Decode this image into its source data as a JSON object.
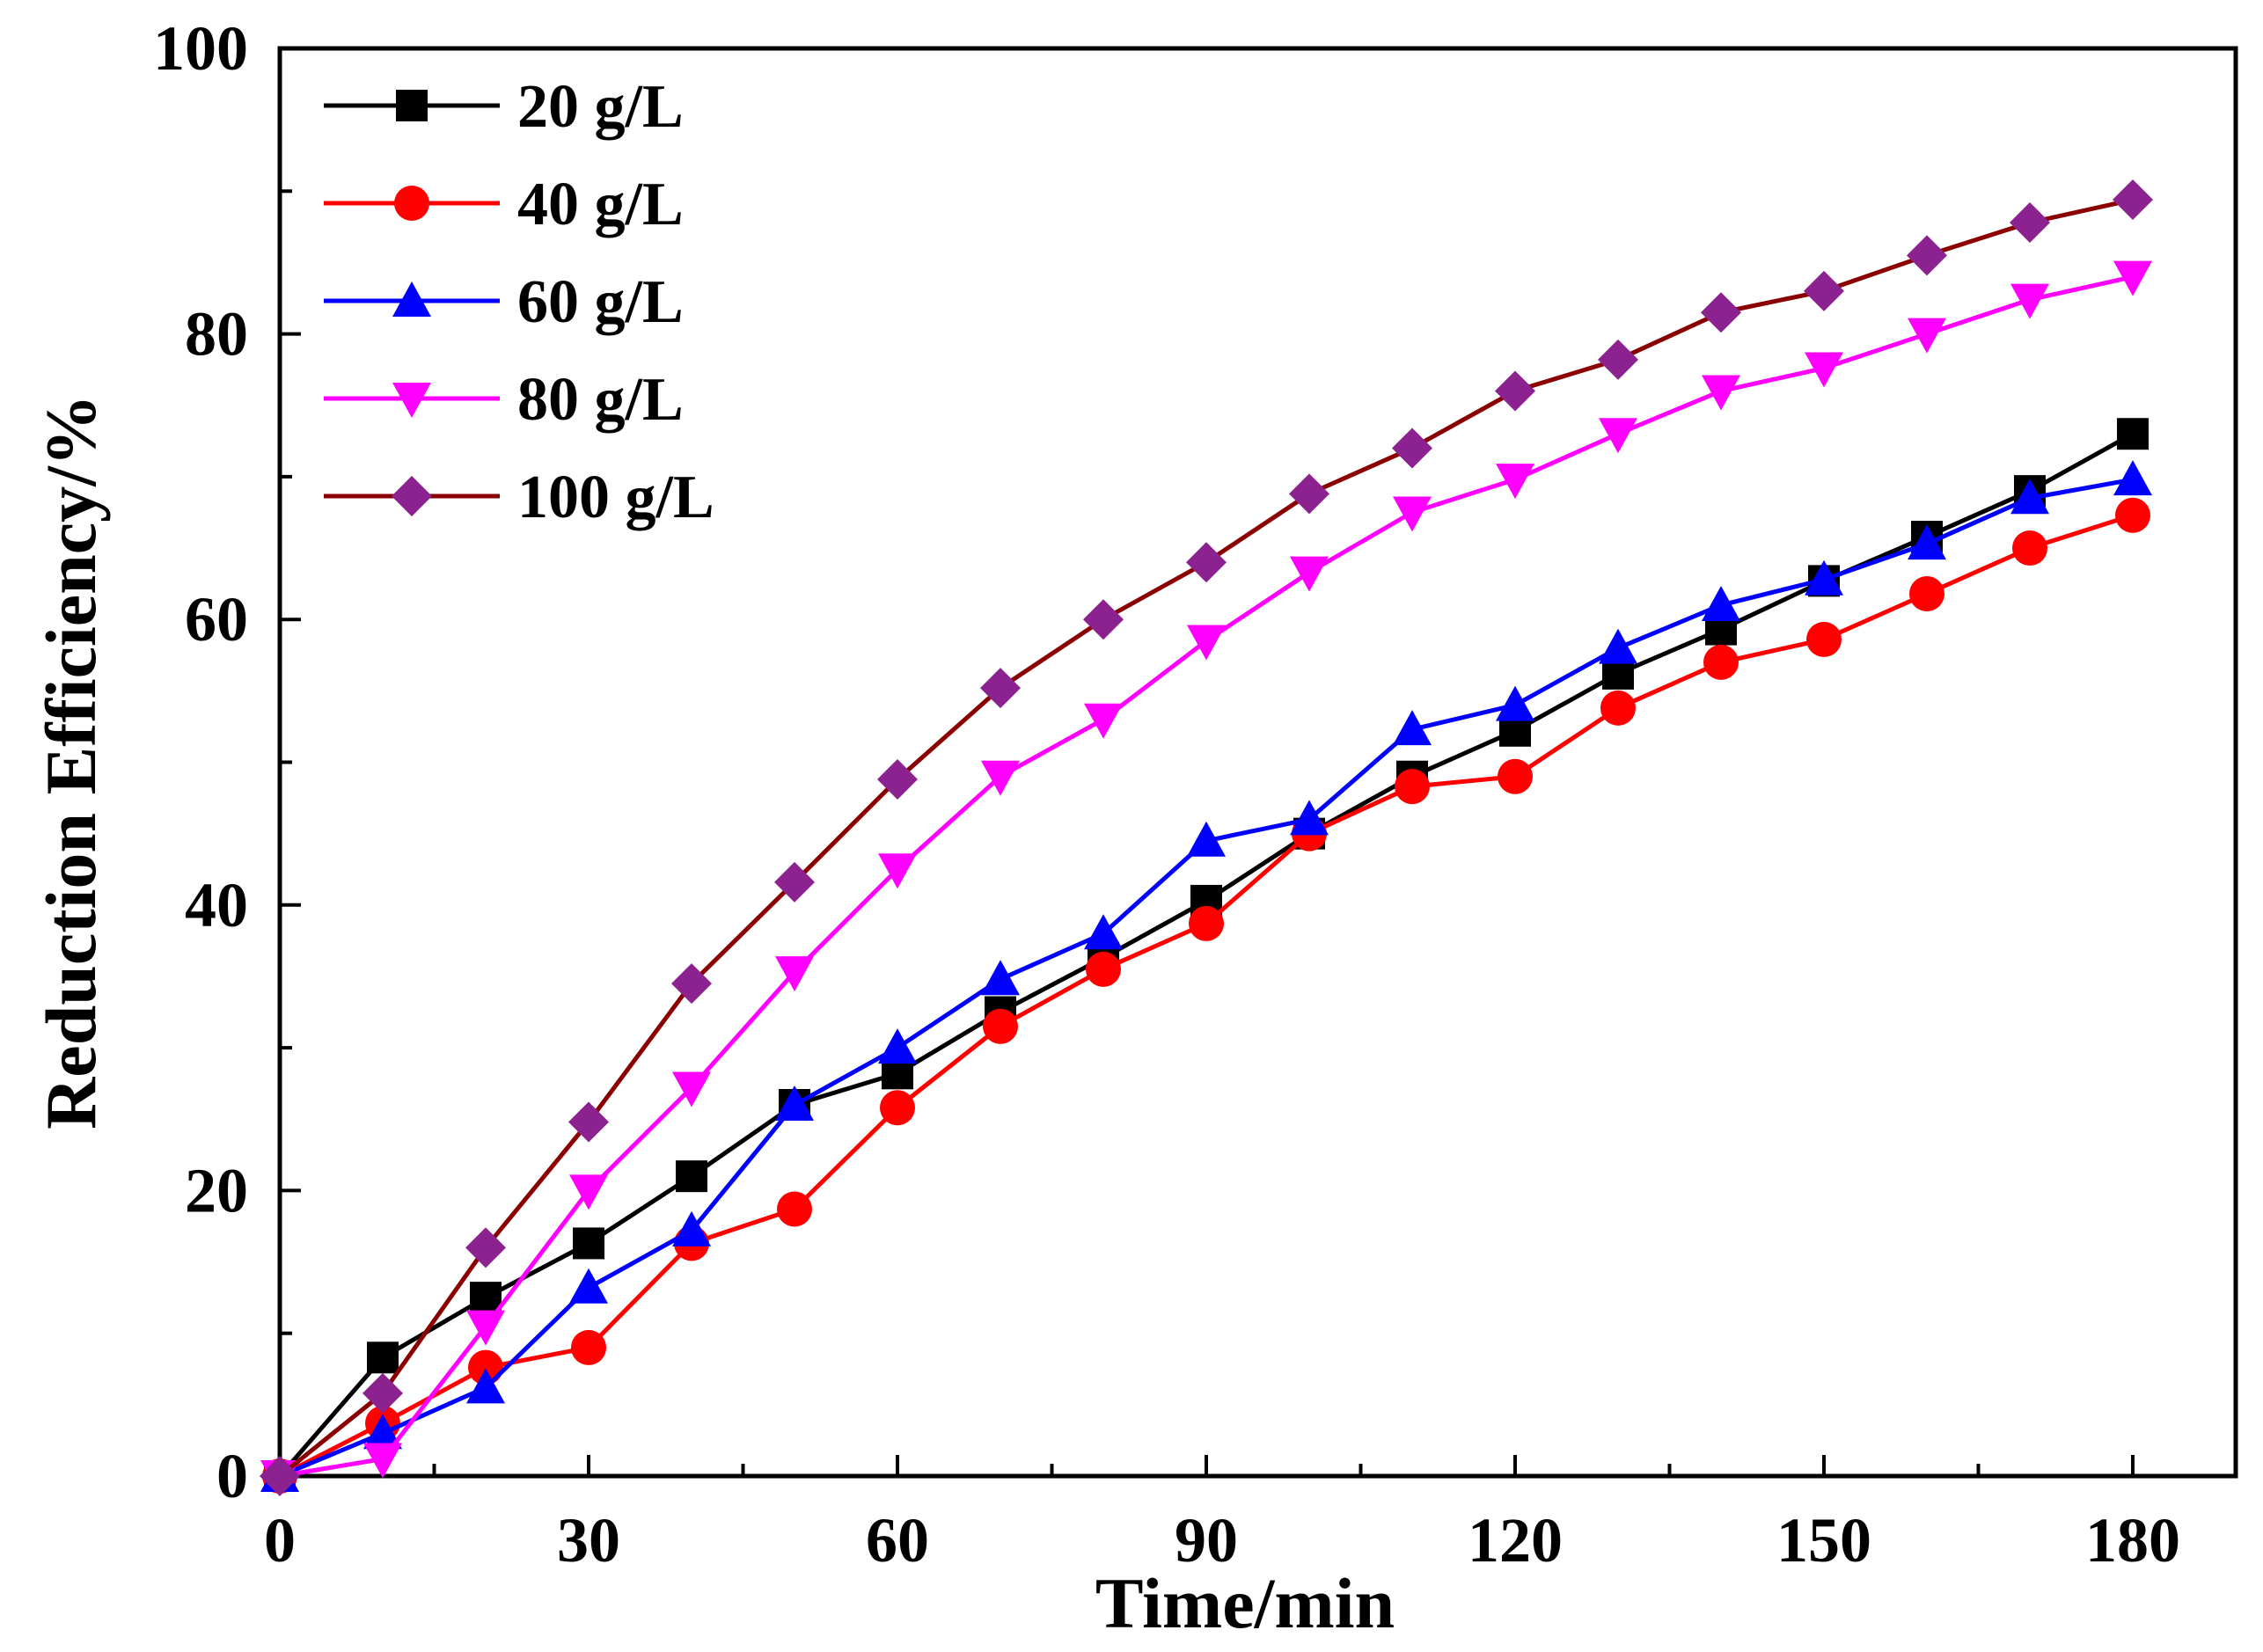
{
  "chart_data": {
    "type": "line",
    "xlabel": "Time/min",
    "ylabel": "Reduction Efficiency/%",
    "xlim": [
      0,
      190
    ],
    "ylim": [
      0,
      100
    ],
    "xticks": [
      0,
      30,
      60,
      90,
      120,
      150,
      180
    ],
    "xtick_labels": [
      "0",
      "30",
      "60",
      "90",
      "120",
      "150",
      "180"
    ],
    "yticks": [
      0,
      20,
      40,
      60,
      80,
      100
    ],
    "ytick_labels": [
      "0",
      "20",
      "40",
      "60",
      "80",
      "100"
    ],
    "legend_position": "top-left",
    "x": [
      0,
      10,
      20,
      30,
      40,
      50,
      60,
      70,
      80,
      90,
      100,
      110,
      120,
      130,
      140,
      150,
      160,
      170,
      180
    ],
    "series": [
      {
        "name": "20 g/L",
        "color": "#000000",
        "marker": "square",
        "values": [
          0,
          8.3,
          12.5,
          16.3,
          21.0,
          26.0,
          28.2,
          32.5,
          36.3,
          40.3,
          45.0,
          49.0,
          52.2,
          56.2,
          59.3,
          62.7,
          65.8,
          69.0,
          73.0
        ]
      },
      {
        "name": "40 g/L",
        "color": "#ff0000",
        "marker": "circle",
        "values": [
          0,
          3.7,
          7.6,
          9.0,
          16.3,
          18.7,
          25.8,
          31.5,
          35.5,
          38.7,
          45.0,
          48.3,
          49.0,
          53.8,
          57.0,
          58.6,
          61.8,
          65.0,
          67.3
        ]
      },
      {
        "name": "60 g/L",
        "color": "#0000ff",
        "marker": "triangle-up",
        "values": [
          0,
          3.0,
          6.2,
          13.2,
          17.2,
          26.0,
          30.0,
          34.8,
          38.0,
          44.5,
          46.0,
          52.3,
          54.0,
          58.0,
          61.0,
          62.8,
          65.3,
          68.5,
          69.8
        ]
      },
      {
        "name": "80 g/L",
        "color": "#ff00ff",
        "marker": "triangle-down",
        "values": [
          0,
          1.2,
          10.5,
          20.0,
          27.2,
          35.3,
          42.5,
          49.0,
          53.0,
          58.5,
          63.3,
          67.5,
          69.8,
          73.0,
          76.0,
          77.6,
          80.0,
          82.4,
          84.0
        ]
      },
      {
        "name": "100 g/L",
        "color": "#8b0000",
        "marker_color": "#8b2290",
        "marker": "diamond",
        "values": [
          0,
          5.8,
          16.0,
          24.8,
          34.5,
          41.6,
          48.8,
          55.2,
          60.0,
          64.0,
          68.8,
          72.0,
          76.0,
          78.2,
          81.5,
          83.0,
          85.5,
          87.8,
          89.4
        ]
      }
    ]
  }
}
